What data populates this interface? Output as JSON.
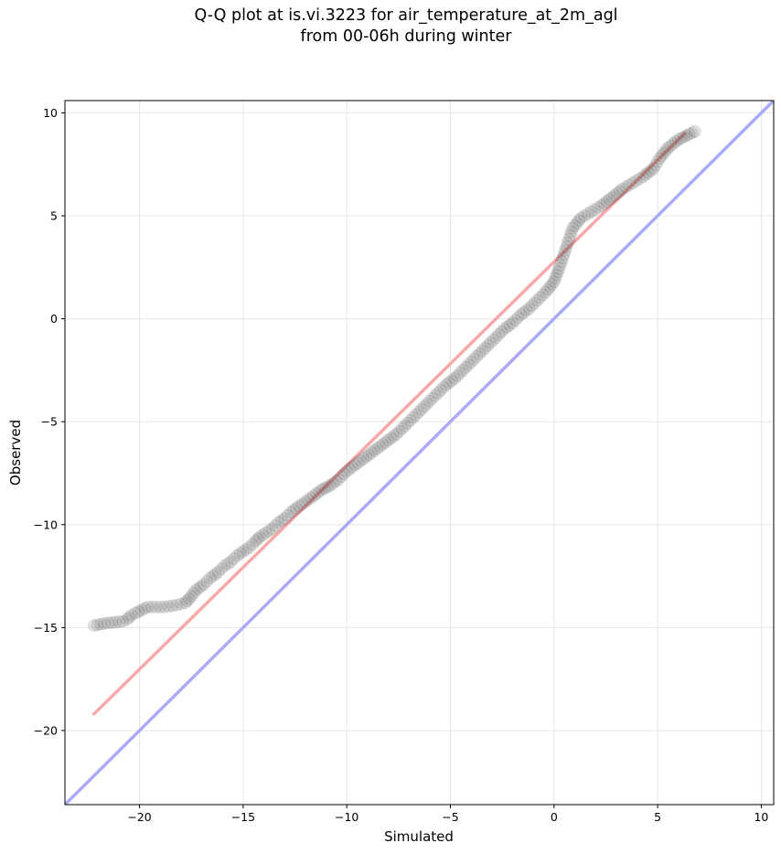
{
  "chart_data": {
    "type": "scatter",
    "title_line1": "Q-Q plot at is.vi.3223 for air_temperature_at_2m_agl",
    "title_line2": "from 00-06h during winter",
    "xlabel": "Simulated",
    "ylabel": "Observed",
    "xlim": [
      -23.6,
      10.6
    ],
    "ylim": [
      -23.6,
      10.6
    ],
    "xticks": [
      -20,
      -15,
      -10,
      -5,
      0,
      5,
      10
    ],
    "yticks": [
      -20,
      -15,
      -10,
      -5,
      0,
      5,
      10
    ],
    "xtick_labels": [
      "−20",
      "−15",
      "−10",
      "−5",
      "0",
      "5",
      "10"
    ],
    "ytick_labels": [
      "−20",
      "−15",
      "−10",
      "−5",
      "0",
      "5",
      "10"
    ],
    "grid": true,
    "identity_line": {
      "color": "#aaaaf7"
    },
    "fit_line": {
      "x": [
        -22.2,
        6.3
      ],
      "y": [
        -19.2,
        9.0
      ],
      "color": "#f7a9a9"
    },
    "series": [
      {
        "marker_color": "#333333",
        "points": [
          [
            -22.2,
            -14.9
          ],
          [
            -21.7,
            -14.8
          ],
          [
            -20.8,
            -14.7
          ],
          [
            -20.6,
            -14.6
          ],
          [
            -20.4,
            -14.4
          ],
          [
            -20.2,
            -14.3
          ],
          [
            -19.6,
            -14.0
          ],
          [
            -19.2,
            -14.0
          ],
          [
            -18.8,
            -14.0
          ],
          [
            -18.2,
            -13.9
          ],
          [
            -17.8,
            -13.8
          ],
          [
            -17.6,
            -13.6
          ],
          [
            -17.3,
            -13.2
          ],
          [
            -16.9,
            -12.9
          ],
          [
            -16.6,
            -12.6
          ],
          [
            -16.2,
            -12.3
          ],
          [
            -15.9,
            -12.0
          ],
          [
            -15.6,
            -11.8
          ],
          [
            -15.3,
            -11.5
          ],
          [
            -15.0,
            -11.3
          ],
          [
            -14.7,
            -11.1
          ],
          [
            -14.4,
            -10.8
          ],
          [
            -14.2,
            -10.6
          ],
          [
            -13.9,
            -10.4
          ],
          [
            -13.6,
            -10.2
          ],
          [
            -13.3,
            -9.9
          ],
          [
            -13.0,
            -9.7
          ],
          [
            -12.7,
            -9.4
          ],
          [
            -12.3,
            -9.1
          ],
          [
            -12.0,
            -8.9
          ],
          [
            -11.6,
            -8.6
          ],
          [
            -11.2,
            -8.3
          ],
          [
            -10.8,
            -8.1
          ],
          [
            -10.4,
            -7.8
          ],
          [
            -10.0,
            -7.4
          ],
          [
            -9.6,
            -7.1
          ],
          [
            -9.2,
            -6.8
          ],
          [
            -8.8,
            -6.5
          ],
          [
            -8.4,
            -6.2
          ],
          [
            -8.0,
            -5.9
          ],
          [
            -7.6,
            -5.6
          ],
          [
            -7.2,
            -5.2
          ],
          [
            -6.8,
            -4.8
          ],
          [
            -6.4,
            -4.4
          ],
          [
            -6.0,
            -4.0
          ],
          [
            -5.6,
            -3.6
          ],
          [
            -5.2,
            -3.2
          ],
          [
            -4.8,
            -2.9
          ],
          [
            -4.4,
            -2.5
          ],
          [
            -4.0,
            -2.1
          ],
          [
            -3.6,
            -1.7
          ],
          [
            -3.2,
            -1.3
          ],
          [
            -2.8,
            -0.9
          ],
          [
            -2.4,
            -0.5
          ],
          [
            -2.0,
            -0.2
          ],
          [
            -1.6,
            0.2
          ],
          [
            -1.2,
            0.5
          ],
          [
            -0.8,
            0.9
          ],
          [
            -0.4,
            1.3
          ],
          [
            0.0,
            1.8
          ],
          [
            0.3,
            2.6
          ],
          [
            0.6,
            3.5
          ],
          [
            0.9,
            4.4
          ],
          [
            1.3,
            4.9
          ],
          [
            1.8,
            5.2
          ],
          [
            2.3,
            5.5
          ],
          [
            2.8,
            5.9
          ],
          [
            3.3,
            6.3
          ],
          [
            3.8,
            6.6
          ],
          [
            4.3,
            6.9
          ],
          [
            4.8,
            7.3
          ],
          [
            5.1,
            7.8
          ],
          [
            5.5,
            8.3
          ],
          [
            6.0,
            8.7
          ],
          [
            6.4,
            8.9
          ],
          [
            6.8,
            9.1
          ]
        ]
      }
    ]
  }
}
